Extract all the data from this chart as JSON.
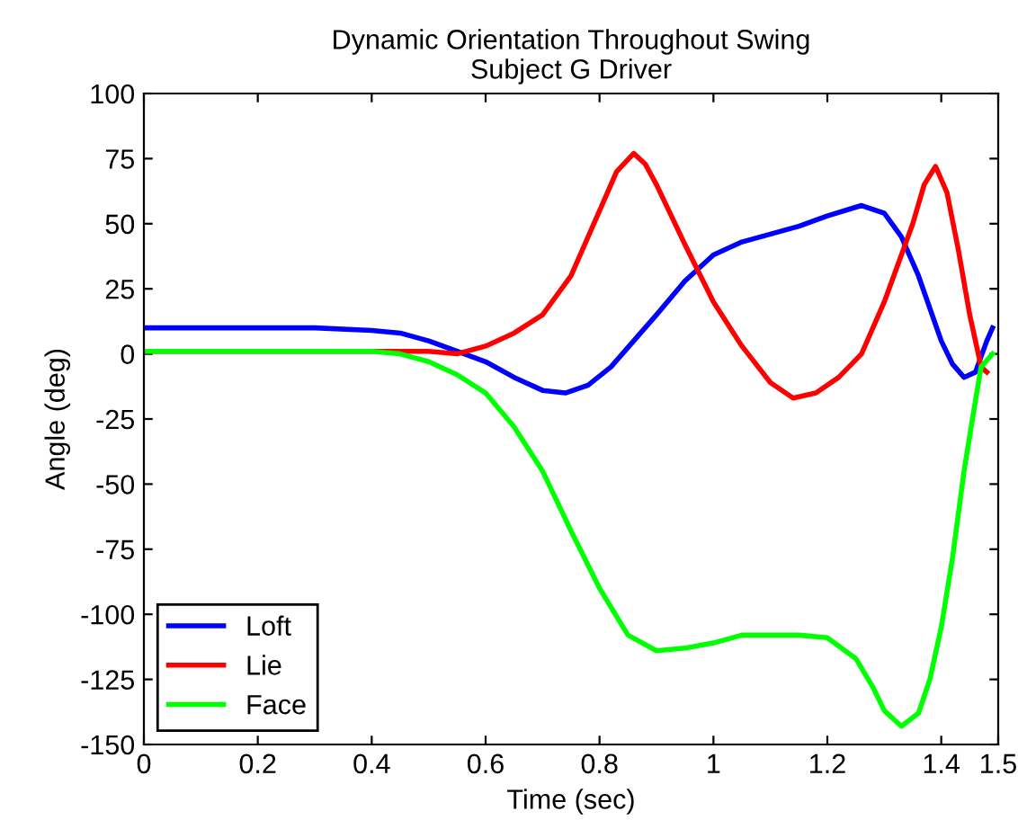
{
  "chart_data": {
    "type": "line",
    "title": "Dynamic Orientation Throughout Swing\nSubject G Driver",
    "xlabel": "Time (sec)",
    "ylabel": "Angle (deg)",
    "xlim": [
      0,
      1.5
    ],
    "xticks": [
      0,
      0.2,
      0.4,
      0.6,
      0.8,
      1,
      1.2,
      1.4,
      1.5
    ],
    "ylim": [
      -150,
      100
    ],
    "yticks": [
      -150,
      -125,
      -100,
      -75,
      -50,
      -25,
      0,
      25,
      50,
      75,
      100
    ],
    "grid": false,
    "legend": "bottom left",
    "marker": "none",
    "line_style": "solid",
    "series": [
      {
        "name": "Loft",
        "color": "#0000ff",
        "x": [
          0,
          0.3,
          0.4,
          0.45,
          0.5,
          0.55,
          0.6,
          0.65,
          0.7,
          0.74,
          0.78,
          0.82,
          0.86,
          0.9,
          0.95,
          1.0,
          1.05,
          1.1,
          1.15,
          1.2,
          1.26,
          1.3,
          1.33,
          1.36,
          1.4,
          1.42,
          1.44,
          1.46,
          1.48,
          1.49
        ],
        "values": [
          10,
          10,
          9,
          8,
          5,
          1,
          -3,
          -9,
          -14,
          -15,
          -12,
          -5,
          5,
          15,
          28,
          38,
          43,
          46,
          49,
          53,
          57,
          54,
          45,
          30,
          5,
          -4,
          -9,
          -7,
          5,
          10
        ]
      },
      {
        "name": "Lie",
        "color": "#ff0000",
        "x": [
          0,
          0.4,
          0.5,
          0.55,
          0.6,
          0.65,
          0.7,
          0.75,
          0.8,
          0.83,
          0.86,
          0.88,
          0.9,
          0.95,
          1.0,
          1.05,
          1.1,
          1.14,
          1.18,
          1.22,
          1.26,
          1.3,
          1.35,
          1.37,
          1.39,
          1.41,
          1.43,
          1.45,
          1.47,
          1.48
        ],
        "values": [
          1,
          1,
          1,
          0,
          3,
          8,
          15,
          30,
          55,
          70,
          77,
          73,
          65,
          42,
          20,
          3,
          -11,
          -17,
          -15,
          -9,
          0,
          20,
          50,
          65,
          72,
          62,
          40,
          15,
          -5,
          -7
        ]
      },
      {
        "name": "Face",
        "color": "#00ff00",
        "x": [
          0,
          0.4,
          0.45,
          0.5,
          0.55,
          0.6,
          0.65,
          0.7,
          0.75,
          0.8,
          0.85,
          0.9,
          0.95,
          1.0,
          1.05,
          1.1,
          1.15,
          1.2,
          1.25,
          1.28,
          1.3,
          1.33,
          1.36,
          1.38,
          1.4,
          1.42,
          1.44,
          1.46,
          1.47,
          1.49
        ],
        "values": [
          1,
          1,
          0,
          -3,
          -8,
          -15,
          -28,
          -45,
          -68,
          -90,
          -108,
          -114,
          -113,
          -111,
          -108,
          -108,
          -108,
          -109,
          -117,
          -128,
          -137,
          -143,
          -138,
          -125,
          -105,
          -78,
          -45,
          -18,
          -5,
          0
        ]
      }
    ]
  }
}
